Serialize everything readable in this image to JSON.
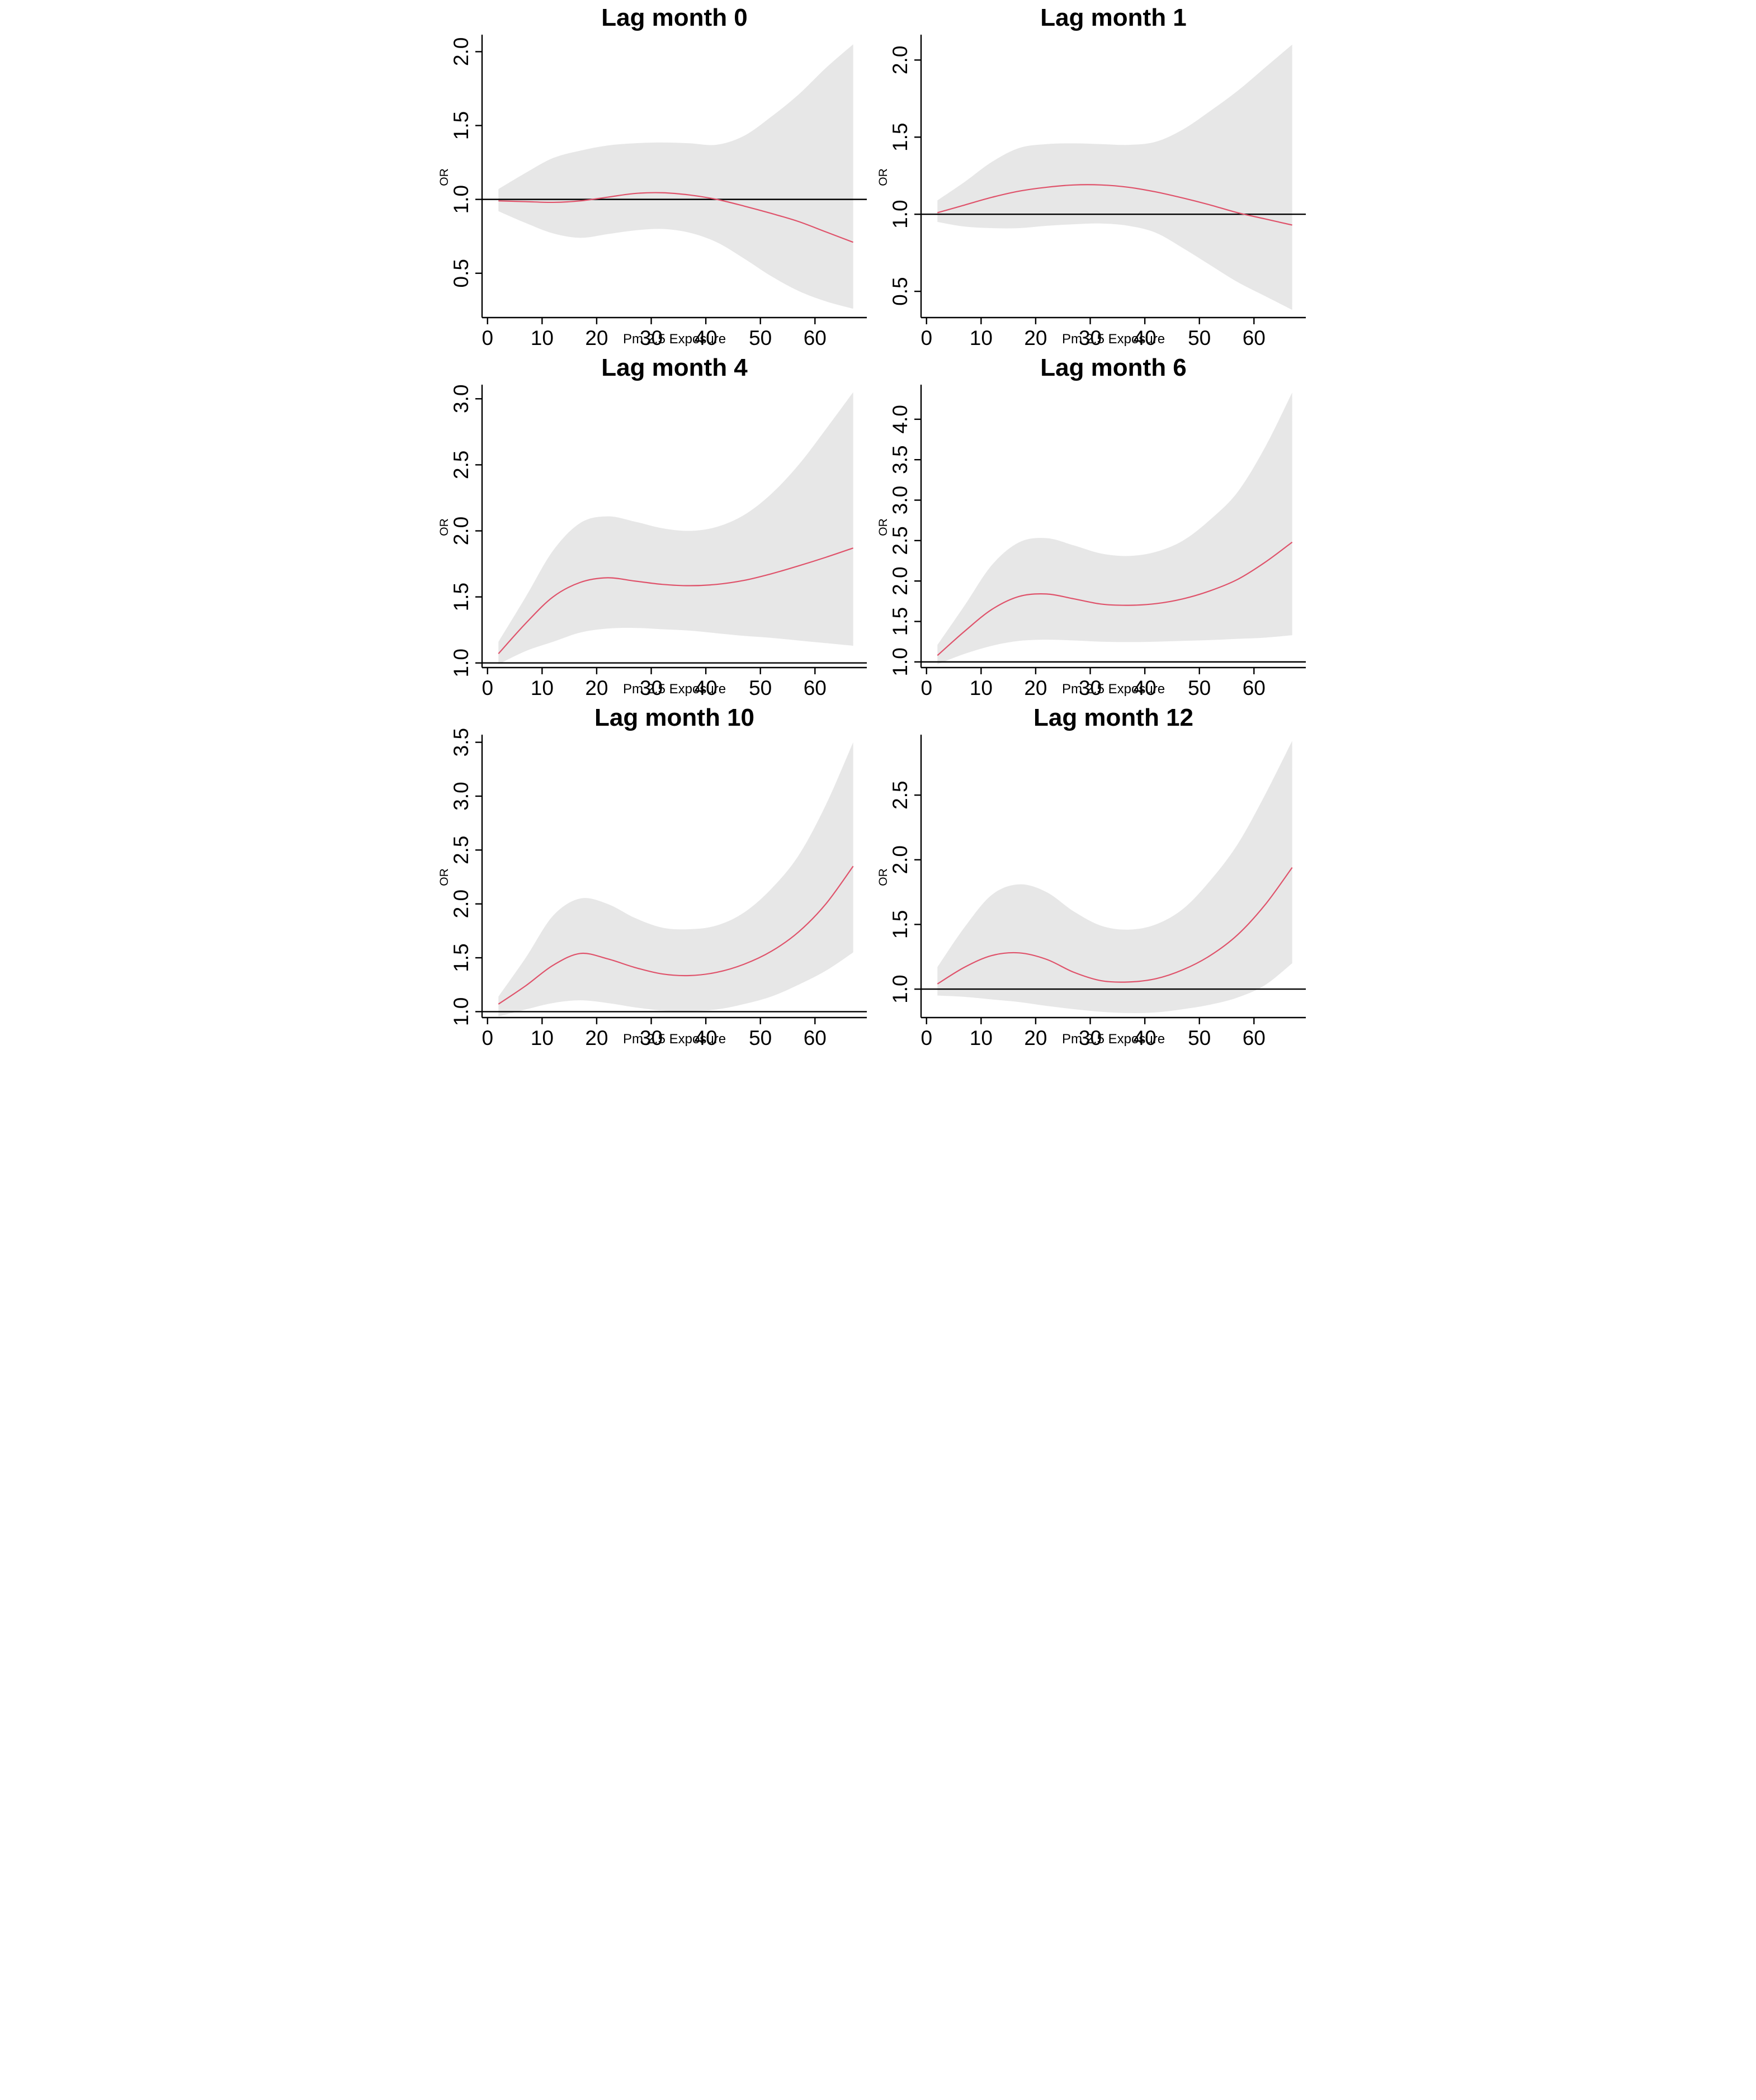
{
  "figure": {
    "layout": {
      "rows": 3,
      "cols": 2
    },
    "background": "#ffffff"
  },
  "style": {
    "line_color": "#DF536B",
    "band_color": "#E7E7E7",
    "ref_line_color": "#000000",
    "axis_color": "#000000",
    "text_color": "#000000"
  },
  "chart_data": [
    {
      "type": "line",
      "title": "Lag month 0",
      "xlabel": "Pm 2.5 Exposure",
      "ylabel": "OR",
      "x": [
        2,
        7,
        12,
        17,
        22,
        27,
        32,
        37,
        42,
        47,
        52,
        57,
        62,
        67
      ],
      "series": [
        {
          "name": "fit",
          "values": [
            0.99,
            0.985,
            0.98,
            0.99,
            1.015,
            1.04,
            1.045,
            1.03,
            1.0,
            0.955,
            0.905,
            0.85,
            0.78,
            0.71
          ]
        },
        {
          "name": "lower_95ci",
          "values": [
            0.92,
            0.84,
            0.77,
            0.74,
            0.765,
            0.79,
            0.8,
            0.775,
            0.71,
            0.6,
            0.48,
            0.38,
            0.31,
            0.26
          ]
        },
        {
          "name": "upper_95ci",
          "values": [
            1.07,
            1.18,
            1.28,
            1.33,
            1.365,
            1.38,
            1.385,
            1.38,
            1.37,
            1.43,
            1.56,
            1.71,
            1.89,
            2.05
          ]
        }
      ],
      "ref_line_y": 1.0,
      "xlim": [
        -1,
        69.5
      ],
      "ylim": [
        0.2,
        2.1
      ],
      "xticks": [
        0,
        10,
        20,
        30,
        40,
        50,
        60
      ],
      "xtick_labels": [
        "0",
        "10",
        "20",
        "30",
        "40",
        "50",
        "60"
      ],
      "yticks": [
        0.5,
        1.0,
        1.5,
        2.0
      ],
      "ytick_labels": [
        "0.5",
        "1.0",
        "1.5",
        "2.0"
      ],
      "grid": false,
      "legend": "none"
    },
    {
      "type": "line",
      "title": "Lag month 1",
      "xlabel": "Pm 2.5 Exposure",
      "ylabel": "OR",
      "x": [
        2,
        7,
        12,
        17,
        22,
        27,
        32,
        37,
        42,
        47,
        52,
        57,
        62,
        67
      ],
      "series": [
        {
          "name": "fit",
          "values": [
            1.01,
            1.06,
            1.11,
            1.15,
            1.175,
            1.19,
            1.19,
            1.175,
            1.145,
            1.105,
            1.06,
            1.01,
            0.97,
            0.93
          ]
        },
        {
          "name": "lower_95ci",
          "values": [
            0.95,
            0.92,
            0.91,
            0.91,
            0.925,
            0.935,
            0.94,
            0.925,
            0.88,
            0.78,
            0.67,
            0.56,
            0.47,
            0.38
          ]
        },
        {
          "name": "upper_95ci",
          "values": [
            1.09,
            1.21,
            1.34,
            1.43,
            1.455,
            1.46,
            1.455,
            1.45,
            1.47,
            1.55,
            1.67,
            1.8,
            1.95,
            2.1
          ]
        }
      ],
      "ref_line_y": 1.0,
      "xlim": [
        -1,
        69.5
      ],
      "ylim": [
        0.33,
        2.15
      ],
      "xticks": [
        0,
        10,
        20,
        30,
        40,
        50,
        60
      ],
      "xtick_labels": [
        "0",
        "10",
        "20",
        "30",
        "40",
        "50",
        "60"
      ],
      "yticks": [
        0.5,
        1.0,
        1.5,
        2.0
      ],
      "ytick_labels": [
        "0.5",
        "1.0",
        "1.5",
        "2.0"
      ],
      "grid": false,
      "legend": "none"
    },
    {
      "type": "line",
      "title": "Lag month 4",
      "xlabel": "Pm 2.5 Exposure",
      "ylabel": "OR",
      "x": [
        2,
        7,
        12,
        17,
        22,
        27,
        32,
        37,
        42,
        47,
        52,
        57,
        62,
        67
      ],
      "series": [
        {
          "name": "fit",
          "values": [
            1.07,
            1.3,
            1.5,
            1.61,
            1.645,
            1.62,
            1.595,
            1.585,
            1.595,
            1.625,
            1.675,
            1.735,
            1.8,
            1.87
          ]
        },
        {
          "name": "lower_95ci",
          "values": [
            0.99,
            1.09,
            1.16,
            1.23,
            1.26,
            1.265,
            1.255,
            1.245,
            1.225,
            1.205,
            1.19,
            1.17,
            1.15,
            1.13
          ]
        },
        {
          "name": "upper_95ci",
          "values": [
            1.16,
            1.5,
            1.85,
            2.06,
            2.11,
            2.07,
            2.02,
            2.0,
            2.03,
            2.12,
            2.28,
            2.5,
            2.77,
            3.05
          ]
        }
      ],
      "ref_line_y": 1.0,
      "xlim": [
        -1,
        69.5
      ],
      "ylim": [
        0.965,
        3.09
      ],
      "xticks": [
        0,
        10,
        20,
        30,
        40,
        50,
        60
      ],
      "xtick_labels": [
        "0",
        "10",
        "20",
        "30",
        "40",
        "50",
        "60"
      ],
      "yticks": [
        1.0,
        1.5,
        2.0,
        2.5,
        3.0
      ],
      "ytick_labels": [
        "1.0",
        "1.5",
        "2.0",
        "2.5",
        "3.0"
      ],
      "grid": false,
      "legend": "none"
    },
    {
      "type": "line",
      "title": "Lag month 6",
      "xlabel": "Pm 2.5 Exposure",
      "ylabel": "OR",
      "x": [
        2,
        7,
        12,
        17,
        22,
        27,
        32,
        37,
        42,
        47,
        52,
        57,
        62,
        67
      ],
      "series": [
        {
          "name": "fit",
          "values": [
            1.08,
            1.38,
            1.65,
            1.81,
            1.84,
            1.78,
            1.715,
            1.7,
            1.72,
            1.78,
            1.88,
            2.02,
            2.23,
            2.48
          ]
        },
        {
          "name": "lower_95ci",
          "values": [
            0.97,
            1.1,
            1.2,
            1.26,
            1.275,
            1.265,
            1.25,
            1.245,
            1.25,
            1.26,
            1.27,
            1.285,
            1.3,
            1.33
          ]
        },
        {
          "name": "upper_95ci",
          "values": [
            1.21,
            1.7,
            2.2,
            2.48,
            2.53,
            2.44,
            2.34,
            2.31,
            2.36,
            2.5,
            2.76,
            3.1,
            3.65,
            4.33
          ]
        }
      ],
      "ref_line_y": 1.0,
      "xlim": [
        -1,
        69.5
      ],
      "ylim": [
        0.93,
        4.4
      ],
      "xticks": [
        0,
        10,
        20,
        30,
        40,
        50,
        60
      ],
      "xtick_labels": [
        "0",
        "10",
        "20",
        "30",
        "40",
        "50",
        "60"
      ],
      "yticks": [
        1.0,
        1.5,
        2.0,
        2.5,
        3.0,
        3.5,
        4.0
      ],
      "ytick_labels": [
        "1.0",
        "1.5",
        "2.0",
        "2.5",
        "3.0",
        "3.5",
        "4.0"
      ],
      "grid": false,
      "legend": "none"
    },
    {
      "type": "line",
      "title": "Lag month 10",
      "xlabel": "Pm 2.5 Exposure",
      "ylabel": "OR",
      "x": [
        2,
        7,
        12,
        17,
        22,
        27,
        32,
        37,
        42,
        47,
        52,
        57,
        62,
        67
      ],
      "series": [
        {
          "name": "fit",
          "values": [
            1.07,
            1.24,
            1.43,
            1.54,
            1.49,
            1.41,
            1.35,
            1.335,
            1.365,
            1.44,
            1.56,
            1.74,
            2.0,
            2.35
          ]
        },
        {
          "name": "lower_95ci",
          "values": [
            0.955,
            1.02,
            1.08,
            1.105,
            1.08,
            1.04,
            1.01,
            1.005,
            1.02,
            1.07,
            1.14,
            1.25,
            1.38,
            1.55
          ]
        },
        {
          "name": "upper_95ci",
          "values": [
            1.14,
            1.5,
            1.89,
            2.05,
            2.0,
            1.87,
            1.78,
            1.765,
            1.8,
            1.92,
            2.14,
            2.45,
            2.92,
            3.5
          ]
        }
      ],
      "ref_line_y": 1.0,
      "xlim": [
        -1,
        69.5
      ],
      "ylim": [
        0.945,
        3.55
      ],
      "xticks": [
        0,
        10,
        20,
        30,
        40,
        50,
        60
      ],
      "xtick_labels": [
        "0",
        "10",
        "20",
        "30",
        "40",
        "50",
        "60"
      ],
      "yticks": [
        1.0,
        1.5,
        2.0,
        2.5,
        3.0,
        3.5
      ],
      "ytick_labels": [
        "1.0",
        "1.5",
        "2.0",
        "2.5",
        "3.0",
        "3.5"
      ],
      "grid": false,
      "legend": "none"
    },
    {
      "type": "line",
      "title": "Lag month 12",
      "xlabel": "Pm 2.5 Exposure",
      "ylabel": "OR",
      "x": [
        2,
        7,
        12,
        17,
        22,
        27,
        32,
        37,
        42,
        47,
        52,
        57,
        62,
        67
      ],
      "series": [
        {
          "name": "fit",
          "values": [
            1.04,
            1.17,
            1.26,
            1.28,
            1.23,
            1.13,
            1.065,
            1.055,
            1.08,
            1.15,
            1.26,
            1.42,
            1.65,
            1.94
          ]
        },
        {
          "name": "lower_95ci",
          "values": [
            0.95,
            0.94,
            0.92,
            0.9,
            0.87,
            0.845,
            0.825,
            0.815,
            0.82,
            0.845,
            0.88,
            0.935,
            1.03,
            1.2
          ]
        },
        {
          "name": "upper_95ci",
          "values": [
            1.17,
            1.48,
            1.73,
            1.81,
            1.75,
            1.6,
            1.49,
            1.46,
            1.5,
            1.62,
            1.84,
            2.12,
            2.5,
            2.92
          ]
        }
      ],
      "ref_line_y": 1.0,
      "xlim": [
        -1,
        69.5
      ],
      "ylim": [
        0.78,
        2.95
      ],
      "xticks": [
        0,
        10,
        20,
        30,
        40,
        50,
        60
      ],
      "xtick_labels": [
        "0",
        "10",
        "20",
        "30",
        "40",
        "50",
        "60"
      ],
      "yticks": [
        1.0,
        1.5,
        2.0,
        2.5
      ],
      "ytick_labels": [
        "1.0",
        "1.5",
        "2.0",
        "2.5"
      ],
      "grid": false,
      "legend": "none"
    }
  ]
}
